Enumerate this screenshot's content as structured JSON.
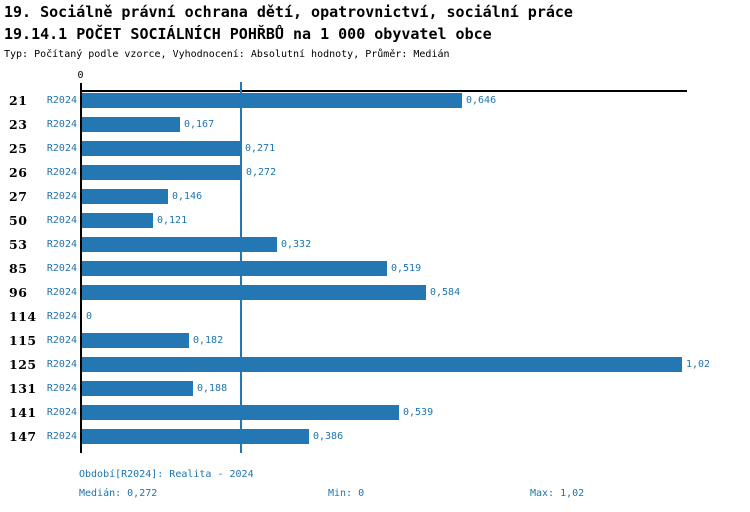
{
  "header": {
    "line1": "19. Sociálně právní ochrana dětí, opatrovnictví, sociální práce",
    "line2": "19.14.1 POČET SOCIÁLNÍCH POHŘBŮ na 1 000 obyvatel obce",
    "meta": "Typ: Počítaný podle vzorce, Vyhodnocení: Absolutní hodnoty, Průměr: Medián"
  },
  "axis": {
    "zero_label": "0"
  },
  "chart_data": {
    "type": "bar",
    "orientation": "horizontal",
    "title": "19.14.1 POČET SOCIÁLNÍCH POHŘBŮ na 1 000 obyvatel obce",
    "categories": [
      "21",
      "23",
      "25",
      "26",
      "27",
      "50",
      "53",
      "85",
      "96",
      "114",
      "115",
      "125",
      "131",
      "141",
      "147"
    ],
    "series": [
      {
        "name": "R2024",
        "values": [
          0.646,
          0.167,
          0.271,
          0.272,
          0.146,
          0.121,
          0.332,
          0.519,
          0.584,
          0,
          0.182,
          1.02,
          0.188,
          0.539,
          0.386
        ]
      }
    ],
    "value_labels": [
      "0,646",
      "0,167",
      "0,271",
      "0,272",
      "0,146",
      "0,121",
      "0,332",
      "0,519",
      "0,584",
      "0",
      "0,182",
      "1,02",
      "0,188",
      "0,539",
      "0,386"
    ],
    "xlim": [
      0,
      1.02
    ],
    "median": 0.272,
    "grid": false,
    "legend_position": "none",
    "bar_color": "#2378b4"
  },
  "footer": {
    "period": "Období[R2024]: Realita - 2024",
    "median": "Medián: 0,272",
    "min": "Min: 0",
    "max": "Max: 1,02"
  },
  "colors": {
    "bar": "#2378b4",
    "blue_text": "#1d74af",
    "axis": "#000000",
    "background": "#ffffff"
  }
}
